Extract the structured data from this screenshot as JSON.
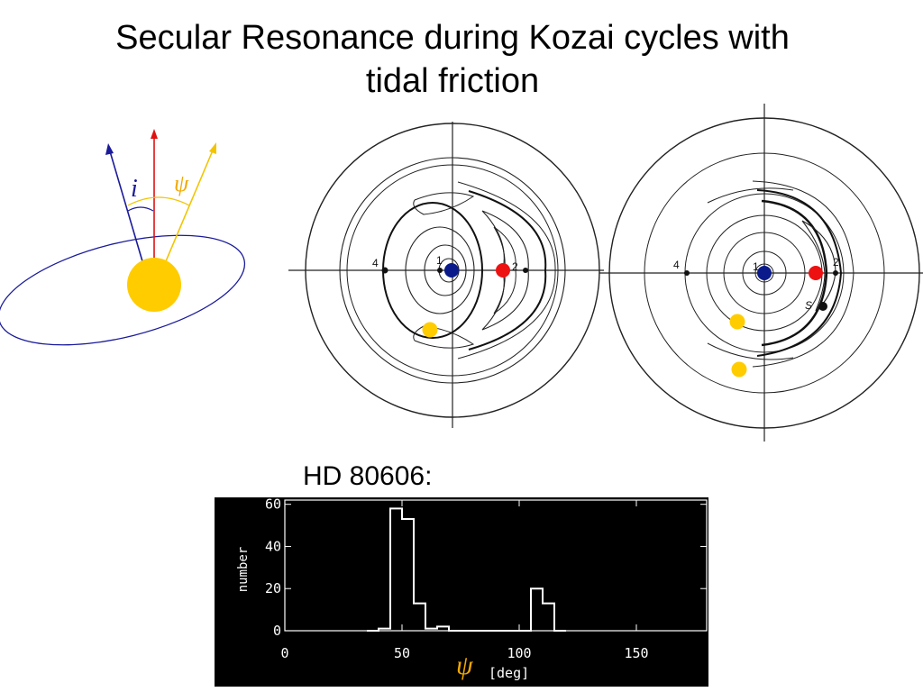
{
  "slide": {
    "title_line1": "Secular Resonance during Kozai cycles with",
    "title_line2": "tidal friction",
    "hd_label": "HD 80606:"
  },
  "colors": {
    "star": "#ffcc00",
    "orbit": "#1a1a9a",
    "spin_axis": "#e01010",
    "psi_axis": "#f2c400",
    "blue_marker": "#0a1a8a",
    "red_marker": "#ee1111",
    "yellow_marker": "#ffcc00"
  },
  "diagram": {
    "label_i": "i",
    "label_psi": "ψ"
  },
  "phase_portraits": [
    {
      "labels": [
        "1",
        "2",
        "4"
      ]
    },
    {
      "labels": [
        "1",
        "2",
        "4",
        "S"
      ]
    }
  ],
  "chart_data": {
    "type": "histogram",
    "xlabel_symbol": "ψ",
    "xlabel": "[deg]",
    "ylabel": "number",
    "xlim": [
      0,
      180
    ],
    "ylim": [
      0,
      62
    ],
    "xticks": [
      0,
      50,
      100,
      150
    ],
    "yticks": [
      0,
      20,
      40,
      60
    ],
    "bin_width": 5,
    "bins": [
      {
        "x0": 35,
        "v": 0
      },
      {
        "x0": 40,
        "v": 1
      },
      {
        "x0": 45,
        "v": 58
      },
      {
        "x0": 50,
        "v": 53
      },
      {
        "x0": 55,
        "v": 13
      },
      {
        "x0": 60,
        "v": 1
      },
      {
        "x0": 65,
        "v": 2
      },
      {
        "x0": 70,
        "v": 0
      },
      {
        "x0": 100,
        "v": 0
      },
      {
        "x0": 105,
        "v": 20
      },
      {
        "x0": 110,
        "v": 13
      },
      {
        "x0": 115,
        "v": 0
      }
    ]
  }
}
